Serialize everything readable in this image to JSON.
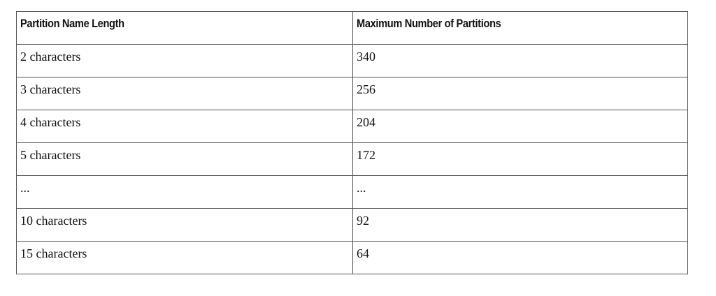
{
  "table": {
    "headers": [
      "Partition Name Length",
      "Maximum Number of Partitions"
    ],
    "rows": [
      [
        "2 characters",
        "340"
      ],
      [
        "3 characters",
        "256"
      ],
      [
        "4 characters",
        "204"
      ],
      [
        "5 characters",
        "172"
      ],
      [
        "...",
        "..."
      ],
      [
        "10 characters",
        "92"
      ],
      [
        "15 characters",
        "64"
      ]
    ]
  }
}
